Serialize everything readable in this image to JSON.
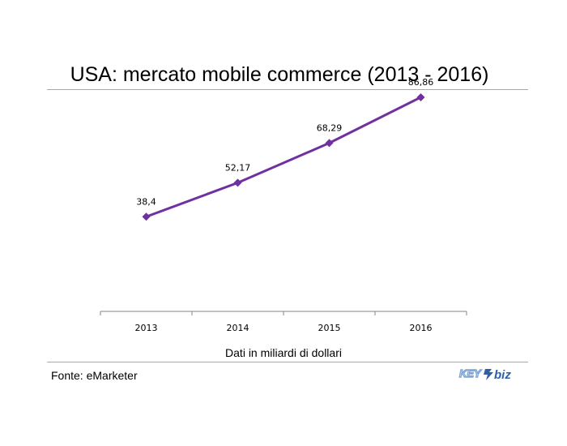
{
  "title": "USA: mercato mobile commerce (2013 - 2016)",
  "note": "Dati in miliardi di dollari",
  "source": "Fonte: eMarketer",
  "logo": {
    "icon": "keybiz-logo",
    "text_key": "KEY",
    "text_biz": "biz"
  },
  "colors": {
    "line": "#7030A0",
    "axis": "#868686",
    "rule": "#A9A9A9",
    "logo_blue": "#2F5FA8",
    "logo_light": "#7FA6D8"
  },
  "chart_data": {
    "type": "line",
    "categories": [
      "2013",
      "2014",
      "2015",
      "2016"
    ],
    "series": [
      {
        "values": [
          38.4,
          52.17,
          68.29,
          86.86
        ]
      }
    ],
    "data_labels": [
      "38,4",
      "52,17",
      "68,29",
      "86,86"
    ],
    "marker": "diamond",
    "ylim": [
      0,
      100
    ],
    "grid": false,
    "legend": "none"
  }
}
